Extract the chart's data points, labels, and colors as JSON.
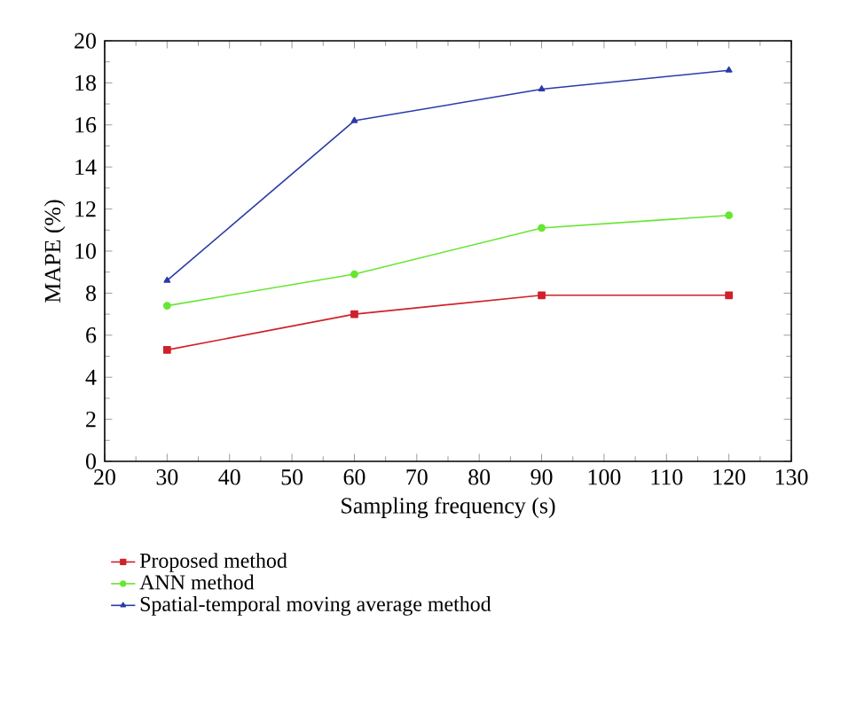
{
  "chart_data": {
    "type": "line",
    "xlabel": "Sampling frequency (s)",
    "ylabel": "MAPE (%)",
    "x": [
      30,
      60,
      90,
      120
    ],
    "series": [
      {
        "name": "Proposed method",
        "color": "#d0202a",
        "values": [
          5.3,
          7.0,
          7.9,
          7.9
        ],
        "marker": "square"
      },
      {
        "name": "ANN method",
        "color": "#66e632",
        "values": [
          7.4,
          8.9,
          11.1,
          11.7
        ],
        "marker": "circle"
      },
      {
        "name": "Spatial-temporal moving average method",
        "color": "#2a3aa8",
        "values": [
          8.6,
          16.2,
          17.7,
          18.6
        ],
        "marker": "triangle"
      }
    ],
    "xlim": [
      20,
      130
    ],
    "ylim": [
      0,
      20
    ],
    "xticks": [
      20,
      30,
      40,
      50,
      60,
      70,
      80,
      90,
      100,
      110,
      120,
      130
    ],
    "yticks": [
      0,
      2,
      4,
      6,
      8,
      10,
      12,
      14,
      16,
      18,
      20
    ],
    "grid": false,
    "legend": "bottom",
    "line_style": "solid"
  }
}
